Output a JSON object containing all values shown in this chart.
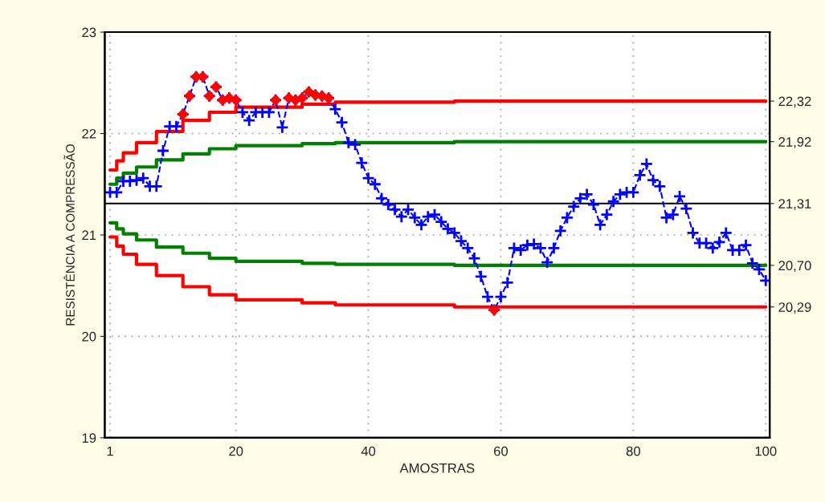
{
  "chart_data": {
    "type": "line",
    "xlabel": "AMOSTRAS",
    "ylabel": "RESISTÊNCIA A COMPRESSÃO",
    "xlim": [
      0.2,
      100.6
    ],
    "ylim": [
      19,
      23
    ],
    "xticks": [
      1,
      20,
      40,
      60,
      80,
      100
    ],
    "yticks": [
      19,
      20,
      21,
      22,
      23
    ],
    "y2lim": [
      19,
      23
    ],
    "y2ticks": [
      {
        "value": 22.32,
        "label": "22,32"
      },
      {
        "value": 21.92,
        "label": "21,92"
      },
      {
        "value": 21.31,
        "label": "21,31"
      },
      {
        "value": 20.7,
        "label": "20,70"
      },
      {
        "value": 20.29,
        "label": "20,29"
      }
    ],
    "grid": true,
    "ref_lines": [
      {
        "axis": "y",
        "value": 21.31,
        "color": "#000000"
      }
    ],
    "series": [
      {
        "type": "step",
        "color": "#ff0000",
        "x": [
          1,
          2,
          3,
          5,
          8,
          12,
          16,
          20,
          30,
          35,
          53,
          100
        ],
        "values": [
          21.64,
          21.73,
          21.81,
          21.91,
          22.02,
          22.13,
          22.21,
          22.26,
          22.29,
          22.31,
          22.32,
          22.32
        ]
      },
      {
        "type": "step",
        "color": "#ff0000",
        "x": [
          1,
          2,
          3,
          5,
          8,
          12,
          16,
          20,
          30,
          35,
          53,
          100
        ],
        "values": [
          20.98,
          20.89,
          20.81,
          20.71,
          20.6,
          20.49,
          20.41,
          20.36,
          20.33,
          20.31,
          20.29,
          20.29
        ]
      },
      {
        "type": "step",
        "color": "#008000",
        "x": [
          1,
          2,
          3,
          5,
          8,
          12,
          16,
          20,
          30,
          35,
          53,
          100
        ],
        "values": [
          21.5,
          21.56,
          21.61,
          21.67,
          21.74,
          21.8,
          21.85,
          21.88,
          21.9,
          21.91,
          21.92,
          21.92
        ]
      },
      {
        "type": "step",
        "color": "#008000",
        "x": [
          1,
          2,
          3,
          5,
          8,
          12,
          16,
          20,
          30,
          35,
          53,
          100
        ],
        "values": [
          21.12,
          21.06,
          21.01,
          20.95,
          20.88,
          20.82,
          20.77,
          20.74,
          20.72,
          20.71,
          20.7,
          20.7
        ]
      },
      {
        "color": "#0000ff",
        "marker": "cross",
        "line_style": "dashed",
        "x": [
          1,
          2,
          3,
          4,
          5,
          6,
          7,
          8,
          9,
          10,
          11,
          12,
          13,
          14,
          15,
          16,
          17,
          18,
          19,
          20,
          21,
          22,
          23,
          24,
          25,
          26,
          27,
          28,
          29,
          30,
          31,
          32,
          33,
          34,
          35,
          36,
          37,
          38,
          39,
          40,
          41,
          42,
          43,
          44,
          45,
          46,
          47,
          48,
          49,
          50,
          51,
          52,
          53,
          54,
          55,
          56,
          57,
          58,
          59,
          60,
          61,
          62,
          63,
          64,
          65,
          66,
          67,
          68,
          69,
          70,
          71,
          72,
          73,
          74,
          75,
          76,
          77,
          78,
          79,
          80,
          81,
          82,
          83,
          84,
          85,
          86,
          87,
          88,
          89,
          90,
          91,
          92,
          93,
          94,
          95,
          96,
          97,
          98,
          99,
          100
        ],
        "values": [
          21.42,
          21.42,
          21.53,
          21.53,
          21.54,
          21.56,
          21.48,
          21.48,
          21.83,
          22.07,
          22.07,
          22.19,
          22.37,
          22.56,
          22.56,
          22.37,
          22.46,
          22.33,
          22.35,
          22.33,
          22.21,
          22.13,
          22.21,
          22.21,
          22.21,
          22.33,
          22.06,
          22.35,
          22.33,
          22.35,
          22.41,
          22.38,
          22.37,
          22.35,
          22.24,
          22.11,
          21.91,
          21.89,
          21.71,
          21.56,
          21.5,
          21.36,
          21.3,
          21.25,
          21.18,
          21.25,
          21.17,
          21.1,
          21.18,
          21.2,
          21.13,
          21.06,
          21.02,
          20.94,
          20.87,
          20.77,
          20.59,
          20.39,
          20.26,
          20.39,
          20.53,
          20.87,
          20.85,
          20.9,
          20.91,
          20.87,
          20.73,
          20.87,
          21.04,
          21.17,
          21.28,
          21.36,
          21.4,
          21.3,
          21.1,
          21.2,
          21.33,
          21.4,
          21.42,
          21.42,
          21.59,
          21.7,
          21.54,
          21.48,
          21.17,
          21.2,
          21.38,
          21.26,
          21.02,
          20.92,
          20.92,
          20.87,
          20.93,
          21.02,
          20.85,
          20.85,
          20.9,
          20.72,
          20.66,
          20.55
        ]
      },
      {
        "type": "scatter",
        "color": "#ff0000",
        "marker": "diamond",
        "x": [
          12,
          13,
          14,
          15,
          16,
          17,
          18,
          19,
          20,
          26,
          28,
          29,
          30,
          31,
          32,
          33,
          34,
          59
        ],
        "values": [
          22.19,
          22.37,
          22.56,
          22.56,
          22.37,
          22.46,
          22.33,
          22.35,
          22.33,
          22.33,
          22.35,
          22.33,
          22.35,
          22.41,
          22.38,
          22.37,
          22.35,
          20.26
        ]
      }
    ]
  }
}
